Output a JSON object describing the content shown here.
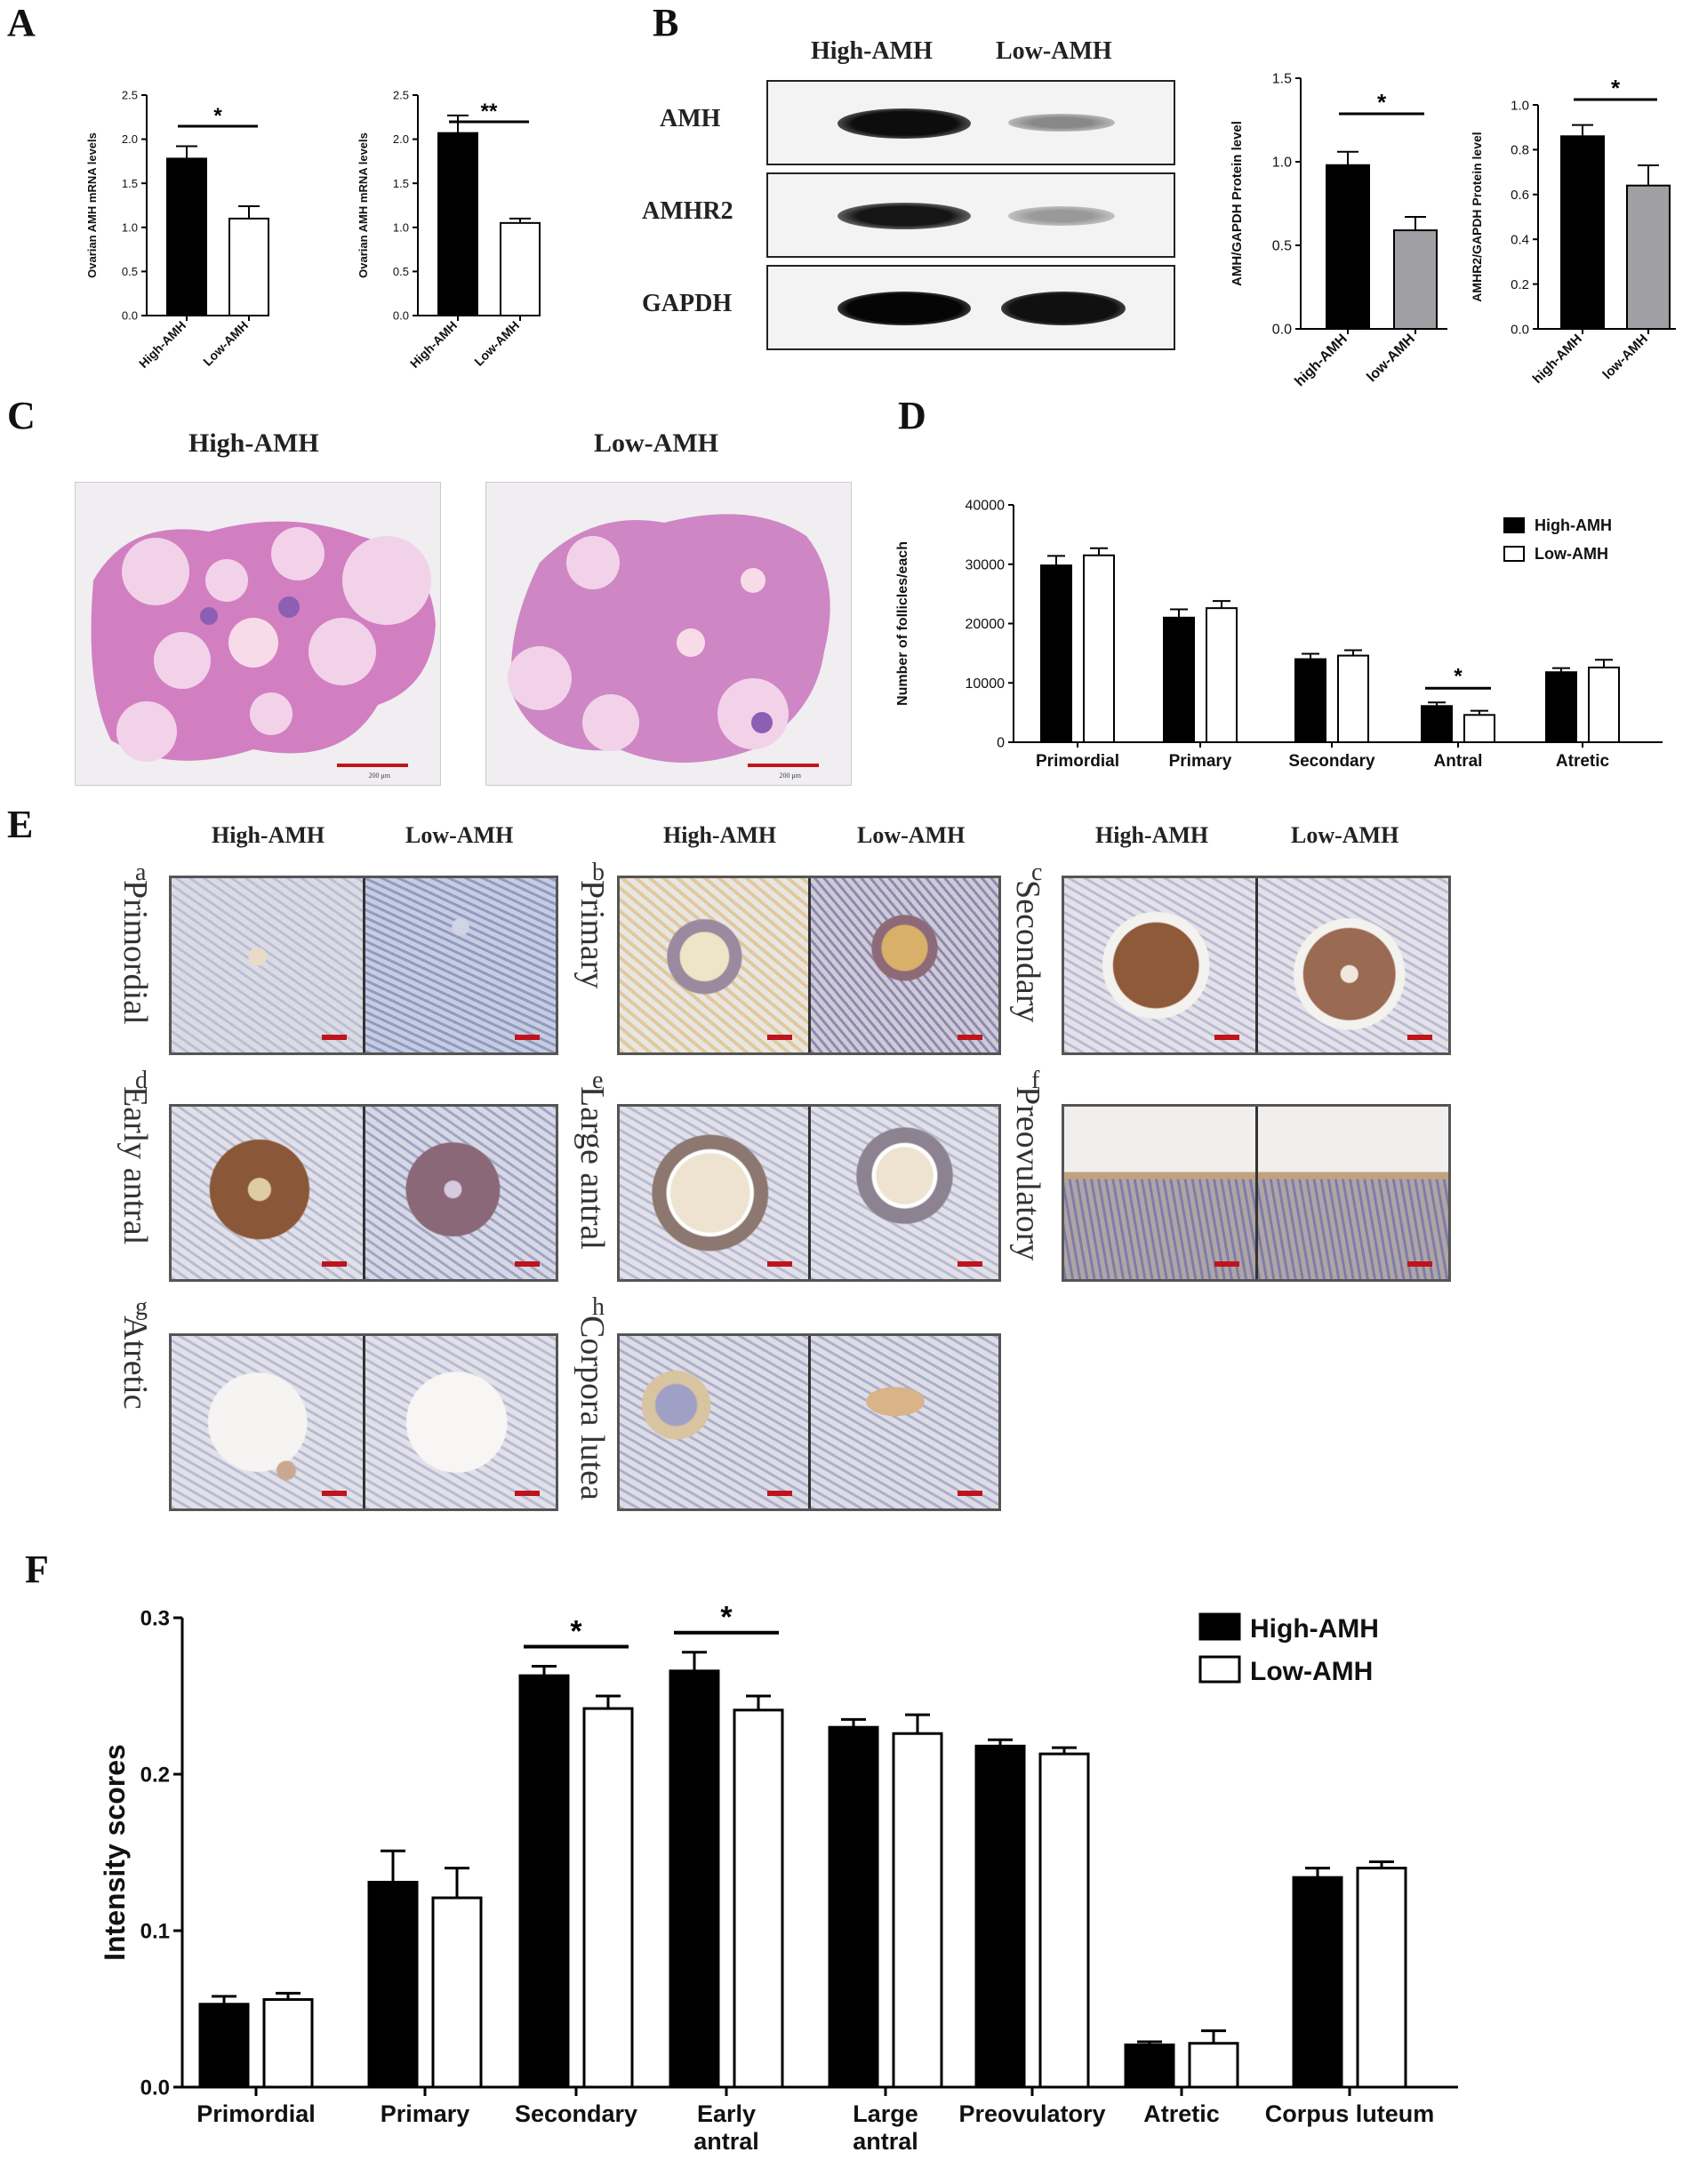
{
  "panels": {
    "A": "A",
    "B": "B",
    "C": "C",
    "D": "D",
    "E": "E",
    "F": "F"
  },
  "colors": {
    "high": "#000000",
    "low": "#ffffff",
    "low_protein": "#a0a0a4",
    "scale_bar": "#c0141c"
  },
  "chart_data": [
    {
      "id": "A1",
      "type": "bar",
      "categories": [
        "High-AMH",
        "Low-AMH"
      ],
      "values": [
        1.78,
        1.1
      ],
      "errors": [
        0.14,
        0.14
      ],
      "ylabel": "Ovarian AMH mRNA levels",
      "ylim": [
        0,
        2.5
      ],
      "yticks": [
        "0.0",
        "0.5",
        "1.0",
        "1.5",
        "2.0",
        "2.5"
      ],
      "significance": [
        {
          "from": 0,
          "to": 1,
          "label": "*"
        }
      ]
    },
    {
      "id": "A2",
      "type": "bar",
      "categories": [
        "High-AMH",
        "Low-AMH"
      ],
      "values": [
        2.07,
        1.05
      ],
      "errors": [
        0.2,
        0.05
      ],
      "ylabel": "Ovarian AMH mRNA levels",
      "ylim": [
        0,
        2.5
      ],
      "yticks": [
        "0.0",
        "0.5",
        "1.0",
        "1.5",
        "2.0",
        "2.5"
      ],
      "significance": [
        {
          "from": 0,
          "to": 1,
          "label": "**"
        }
      ]
    },
    {
      "id": "B1",
      "type": "bar",
      "categories": [
        "high-AMH",
        "low-AMH"
      ],
      "values": [
        0.98,
        0.59
      ],
      "errors": [
        0.08,
        0.08
      ],
      "ylabel": "AMH/GAPDH Protein level",
      "ylim": [
        0,
        1.5
      ],
      "yticks": [
        "0.0",
        "0.5",
        "1.0",
        "1.5"
      ],
      "significance": [
        {
          "from": 0,
          "to": 1,
          "label": "*"
        }
      ]
    },
    {
      "id": "B2",
      "type": "bar",
      "categories": [
        "high-AMH",
        "low-AMH"
      ],
      "values": [
        0.86,
        0.64
      ],
      "errors": [
        0.05,
        0.09
      ],
      "ylabel": "AMHR2/GAPDH Protein level",
      "ylim": [
        0,
        1.0
      ],
      "yticks": [
        "0.0",
        "0.2",
        "0.4",
        "0.6",
        "0.8",
        "1.0"
      ],
      "significance": [
        {
          "from": 0,
          "to": 1,
          "label": "*"
        }
      ]
    },
    {
      "id": "D",
      "type": "bar",
      "categories": [
        "Primordial",
        "Primary",
        "Secondary",
        "Antral",
        "Atretic"
      ],
      "series": [
        {
          "name": "High-AMH",
          "values": [
            29800,
            21000,
            14000,
            6100,
            11800
          ],
          "errors": [
            1600,
            1400,
            900,
            600,
            700
          ]
        },
        {
          "name": "Low-AMH",
          "values": [
            31500,
            22600,
            14600,
            4600,
            12600
          ],
          "errors": [
            1200,
            1200,
            900,
            700,
            1300
          ]
        }
      ],
      "ylabel": "Number of follicles/each",
      "ylim": [
        0,
        40000
      ],
      "yticks": [
        "0",
        "10000",
        "20000",
        "30000",
        "40000"
      ],
      "legend": "top-right",
      "significance": [
        {
          "category": 3,
          "label": "*"
        }
      ]
    },
    {
      "id": "F",
      "type": "bar",
      "categories": [
        "Primordial",
        "Primary",
        "Secondary",
        "Early antral",
        "Large antral",
        "Preovulatory",
        "Atretic",
        "Corpus luteum"
      ],
      "series": [
        {
          "name": "High-AMH",
          "values": [
            0.053,
            0.131,
            0.263,
            0.266,
            0.23,
            0.218,
            0.027,
            0.134
          ],
          "errors": [
            0.005,
            0.02,
            0.006,
            0.012,
            0.005,
            0.004,
            0.002,
            0.006
          ]
        },
        {
          "name": "Low-AMH",
          "values": [
            0.056,
            0.121,
            0.242,
            0.241,
            0.226,
            0.213,
            0.028,
            0.14
          ],
          "errors": [
            0.004,
            0.019,
            0.008,
            0.009,
            0.012,
            0.004,
            0.008,
            0.004
          ]
        }
      ],
      "ylabel": "Intensity scores",
      "ylim": [
        0,
        0.3
      ],
      "yticks": [
        "0.0",
        "0.1",
        "0.2",
        "0.3"
      ],
      "legend": "top-right",
      "significance": [
        {
          "category": 2,
          "label": "*"
        },
        {
          "category": 3,
          "label": "*"
        }
      ]
    }
  ],
  "blot": {
    "lanes": [
      "High-AMH",
      "Low-AMH"
    ],
    "rows": [
      "AMH",
      "AMHR2",
      "GAPDH"
    ]
  },
  "histology": {
    "titles": [
      "High-AMH",
      "Low-AMH"
    ],
    "scale_text": "200 μm"
  },
  "ihc": {
    "group_labels": [
      "High-AMH",
      "Low-AMH"
    ],
    "panels": [
      {
        "letter": "a",
        "stage": "Primordial"
      },
      {
        "letter": "b",
        "stage": "Primary"
      },
      {
        "letter": "c",
        "stage": "Secondary"
      },
      {
        "letter": "d",
        "stage": "Early antral"
      },
      {
        "letter": "e",
        "stage": "Large antral"
      },
      {
        "letter": "f",
        "stage": "Preovulatory"
      },
      {
        "letter": "g",
        "stage": "Atretic"
      },
      {
        "letter": "h",
        "stage": "Corpora lutea"
      }
    ]
  }
}
